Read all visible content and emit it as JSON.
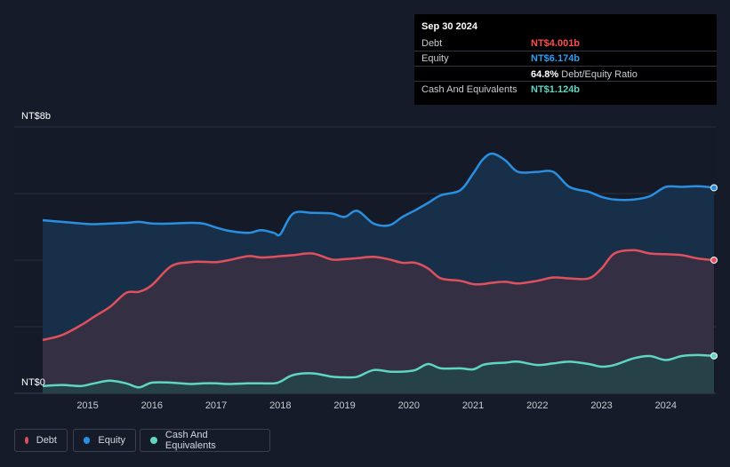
{
  "chart_data": {
    "type": "area",
    "title": "",
    "y_axis": {
      "top_label": "NT$8b",
      "bottom_label": "NT$0",
      "ylim": [
        0,
        8
      ],
      "gridlines": [
        0,
        2,
        4,
        6,
        8
      ]
    },
    "x_axis": {
      "ticks": [
        "2015",
        "2016",
        "2017",
        "2018",
        "2019",
        "2020",
        "2021",
        "2022",
        "2023",
        "2024"
      ],
      "xlim": [
        2014.3,
        2024.75
      ]
    },
    "series": [
      {
        "name": "Equity",
        "color": "#2a8fe0",
        "x": [
          2014.3,
          2014.6,
          2014.9,
          2015.1,
          2015.35,
          2015.6,
          2015.8,
          2016.0,
          2016.3,
          2016.6,
          2016.8,
          2017.0,
          2017.2,
          2017.5,
          2017.7,
          2017.9,
          2018.0,
          2018.2,
          2018.5,
          2018.8,
          2019.0,
          2019.2,
          2019.45,
          2019.7,
          2019.9,
          2020.1,
          2020.3,
          2020.5,
          2020.8,
          2021.0,
          2021.15,
          2021.3,
          2021.5,
          2021.7,
          2022.0,
          2022.25,
          2022.5,
          2022.8,
          2023.0,
          2023.2,
          2023.5,
          2023.75,
          2024.0,
          2024.25,
          2024.5,
          2024.75
        ],
        "values": [
          5.2,
          5.15,
          5.1,
          5.08,
          5.1,
          5.12,
          5.15,
          5.1,
          5.1,
          5.12,
          5.1,
          4.98,
          4.88,
          4.82,
          4.9,
          4.82,
          4.78,
          5.4,
          5.42,
          5.4,
          5.3,
          5.48,
          5.1,
          5.05,
          5.3,
          5.5,
          5.72,
          5.95,
          6.1,
          6.6,
          7.02,
          7.2,
          7.0,
          6.65,
          6.65,
          6.65,
          6.2,
          6.05,
          5.9,
          5.82,
          5.82,
          5.92,
          6.2,
          6.2,
          6.22,
          6.174
        ]
      },
      {
        "name": "Debt",
        "color": "#e0505e",
        "x": [
          2014.3,
          2014.6,
          2014.9,
          2015.1,
          2015.35,
          2015.6,
          2015.8,
          2016.0,
          2016.3,
          2016.6,
          2016.8,
          2017.0,
          2017.2,
          2017.5,
          2017.7,
          2017.9,
          2018.0,
          2018.2,
          2018.5,
          2018.8,
          2019.0,
          2019.2,
          2019.45,
          2019.7,
          2019.9,
          2020.1,
          2020.3,
          2020.5,
          2020.8,
          2021.0,
          2021.15,
          2021.3,
          2021.5,
          2021.7,
          2022.0,
          2022.25,
          2022.5,
          2022.8,
          2023.0,
          2023.2,
          2023.5,
          2023.75,
          2024.0,
          2024.25,
          2024.5,
          2024.75
        ],
        "values": [
          1.6,
          1.75,
          2.05,
          2.3,
          2.6,
          3.02,
          3.05,
          3.25,
          3.82,
          3.94,
          3.95,
          3.94,
          4.0,
          4.12,
          4.08,
          4.1,
          4.12,
          4.15,
          4.2,
          4.02,
          4.03,
          4.06,
          4.1,
          4.02,
          3.92,
          3.92,
          3.75,
          3.45,
          3.38,
          3.28,
          3.28,
          3.32,
          3.35,
          3.3,
          3.38,
          3.48,
          3.45,
          3.45,
          3.75,
          4.2,
          4.3,
          4.2,
          4.18,
          4.15,
          4.05,
          4.001
        ]
      },
      {
        "name": "Cash And Equivalents",
        "color": "#5ed6c3",
        "x": [
          2014.3,
          2014.6,
          2014.9,
          2015.1,
          2015.35,
          2015.6,
          2015.8,
          2016.0,
          2016.3,
          2016.6,
          2016.8,
          2017.0,
          2017.2,
          2017.5,
          2017.7,
          2017.9,
          2018.0,
          2018.2,
          2018.5,
          2018.8,
          2019.0,
          2019.2,
          2019.45,
          2019.7,
          2019.9,
          2020.1,
          2020.3,
          2020.5,
          2020.8,
          2021.0,
          2021.15,
          2021.3,
          2021.5,
          2021.7,
          2022.0,
          2022.25,
          2022.5,
          2022.8,
          2023.0,
          2023.2,
          2023.5,
          2023.75,
          2024.0,
          2024.25,
          2024.5,
          2024.75
        ],
        "values": [
          0.22,
          0.25,
          0.22,
          0.3,
          0.38,
          0.3,
          0.18,
          0.32,
          0.32,
          0.28,
          0.3,
          0.3,
          0.28,
          0.3,
          0.3,
          0.3,
          0.35,
          0.55,
          0.6,
          0.5,
          0.48,
          0.5,
          0.7,
          0.65,
          0.65,
          0.7,
          0.88,
          0.75,
          0.75,
          0.72,
          0.85,
          0.9,
          0.92,
          0.95,
          0.85,
          0.9,
          0.95,
          0.88,
          0.8,
          0.85,
          1.05,
          1.12,
          1.0,
          1.12,
          1.15,
          1.124
        ]
      }
    ],
    "tooltip": {
      "date": "Sep 30 2024",
      "rows": [
        {
          "label": "Debt",
          "value": "NT$4.001b",
          "color": "#ff4d4d"
        },
        {
          "label": "Equity",
          "value": "NT$6.174b",
          "color": "#2a9df4"
        }
      ],
      "ratio_value": "64.8%",
      "ratio_label": "Debt/Equity Ratio",
      "cash": {
        "label": "Cash And Equivalents",
        "value": "NT$1.124b",
        "color": "#5ed6c3"
      }
    }
  },
  "legend": [
    {
      "label": "Debt",
      "color": "#e0505e"
    },
    {
      "label": "Equity",
      "color": "#2a8fe0"
    },
    {
      "label": "Cash And Equivalents",
      "color": "#5ed6c3"
    }
  ]
}
